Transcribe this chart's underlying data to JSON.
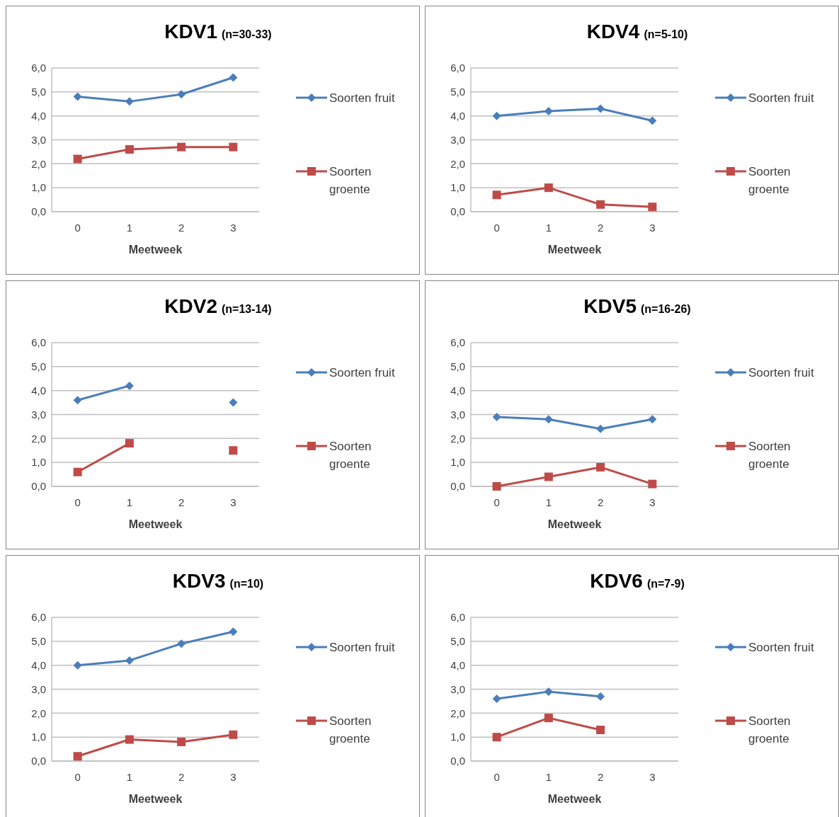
{
  "chart_data": [
    {
      "type": "line",
      "title": "KDV1",
      "subtitle": "(n=30-33)",
      "xlabel": "Meetweek",
      "categories": [
        "0",
        "1",
        "2",
        "3"
      ],
      "ylim": [
        0,
        6
      ],
      "yticks": [
        {
          "value": 0,
          "label": "0,0"
        },
        {
          "value": 1,
          "label": "1,0"
        },
        {
          "value": 2,
          "label": "2,0"
        },
        {
          "value": 3,
          "label": "3,0"
        },
        {
          "value": 4,
          "label": "4,0"
        },
        {
          "value": 5,
          "label": "5,0"
        },
        {
          "value": 6,
          "label": "6,0"
        }
      ],
      "grid": "y",
      "legend": "right",
      "series": [
        {
          "name": "Soorten fruit",
          "color": "#4a7ebb",
          "marker": "diamond",
          "values": [
            4.8,
            4.6,
            4.9,
            5.6
          ]
        },
        {
          "name": "Soorten groente",
          "color": "#be4b48",
          "marker": "square",
          "values": [
            2.2,
            2.6,
            2.7,
            2.7
          ]
        }
      ]
    },
    {
      "type": "line",
      "title": "KDV4",
      "subtitle": "(n=5-10)",
      "xlabel": "Meetweek",
      "categories": [
        "0",
        "1",
        "2",
        "3"
      ],
      "ylim": [
        0,
        6
      ],
      "yticks": [
        {
          "value": 0,
          "label": "0,0"
        },
        {
          "value": 1,
          "label": "1,0"
        },
        {
          "value": 2,
          "label": "2,0"
        },
        {
          "value": 3,
          "label": "3,0"
        },
        {
          "value": 4,
          "label": "4,0"
        },
        {
          "value": 5,
          "label": "5,0"
        },
        {
          "value": 6,
          "label": "6,0"
        }
      ],
      "grid": "y",
      "legend": "right",
      "series": [
        {
          "name": "Soorten fruit",
          "color": "#4a7ebb",
          "marker": "diamond",
          "values": [
            4.0,
            4.2,
            4.3,
            3.8
          ]
        },
        {
          "name": "Soorten groente",
          "color": "#be4b48",
          "marker": "square",
          "values": [
            0.7,
            1.0,
            0.3,
            0.2
          ]
        }
      ]
    },
    {
      "type": "line",
      "title": "KDV2",
      "subtitle": "(n=13-14)",
      "xlabel": "Meetweek",
      "categories": [
        "0",
        "1",
        "2",
        "3"
      ],
      "ylim": [
        0,
        6
      ],
      "yticks": [
        {
          "value": 0,
          "label": "0,0"
        },
        {
          "value": 1,
          "label": "1,0"
        },
        {
          "value": 2,
          "label": "2,0"
        },
        {
          "value": 3,
          "label": "3,0"
        },
        {
          "value": 4,
          "label": "4,0"
        },
        {
          "value": 5,
          "label": "5,0"
        },
        {
          "value": 6,
          "label": "6,0"
        }
      ],
      "grid": "y",
      "legend": "right",
      "series": [
        {
          "name": "Soorten fruit",
          "color": "#4a7ebb",
          "marker": "diamond",
          "values": [
            3.6,
            4.2,
            null,
            3.5
          ]
        },
        {
          "name": "Soorten groente",
          "color": "#be4b48",
          "marker": "square",
          "values": [
            0.6,
            1.8,
            null,
            1.5
          ]
        }
      ]
    },
    {
      "type": "line",
      "title": "KDV5",
      "subtitle": "(n=16-26)",
      "xlabel": "Meetweek",
      "categories": [
        "0",
        "1",
        "2",
        "3"
      ],
      "ylim": [
        0,
        6
      ],
      "yticks": [
        {
          "value": 0,
          "label": "0,0"
        },
        {
          "value": 1,
          "label": "1,0"
        },
        {
          "value": 2,
          "label": "2,0"
        },
        {
          "value": 3,
          "label": "3,0"
        },
        {
          "value": 4,
          "label": "4,0"
        },
        {
          "value": 5,
          "label": "5,0"
        },
        {
          "value": 6,
          "label": "6,0"
        }
      ],
      "grid": "y",
      "legend": "right",
      "series": [
        {
          "name": "Soorten fruit",
          "color": "#4a7ebb",
          "marker": "diamond",
          "values": [
            2.9,
            2.8,
            2.4,
            2.8
          ]
        },
        {
          "name": "Soorten groente",
          "color": "#be4b48",
          "marker": "square",
          "values": [
            0.0,
            0.4,
            0.8,
            0.1
          ]
        }
      ]
    },
    {
      "type": "line",
      "title": "KDV3",
      "subtitle": "(n=10)",
      "xlabel": "Meetweek",
      "categories": [
        "0",
        "1",
        "2",
        "3"
      ],
      "ylim": [
        0,
        6
      ],
      "yticks": [
        {
          "value": 0,
          "label": "0,0"
        },
        {
          "value": 1,
          "label": "1,0"
        },
        {
          "value": 2,
          "label": "2,0"
        },
        {
          "value": 3,
          "label": "3,0"
        },
        {
          "value": 4,
          "label": "4,0"
        },
        {
          "value": 5,
          "label": "5,0"
        },
        {
          "value": 6,
          "label": "6,0"
        }
      ],
      "grid": "y",
      "legend": "right",
      "series": [
        {
          "name": "Soorten fruit",
          "color": "#4a7ebb",
          "marker": "diamond",
          "values": [
            4.0,
            4.2,
            4.9,
            5.4
          ]
        },
        {
          "name": "Soorten groente",
          "color": "#be4b48",
          "marker": "square",
          "values": [
            0.2,
            0.9,
            0.8,
            1.1
          ]
        }
      ]
    },
    {
      "type": "line",
      "title": "KDV6",
      "subtitle": "(n=7-9)",
      "xlabel": "Meetweek",
      "categories": [
        "0",
        "1",
        "2",
        "3"
      ],
      "ylim": [
        0,
        6
      ],
      "yticks": [
        {
          "value": 0,
          "label": "0,0"
        },
        {
          "value": 1,
          "label": "1,0"
        },
        {
          "value": 2,
          "label": "2,0"
        },
        {
          "value": 3,
          "label": "3,0"
        },
        {
          "value": 4,
          "label": "4,0"
        },
        {
          "value": 5,
          "label": "5,0"
        },
        {
          "value": 6,
          "label": "6,0"
        }
      ],
      "grid": "y",
      "legend": "right",
      "series": [
        {
          "name": "Soorten fruit",
          "color": "#4a7ebb",
          "marker": "diamond",
          "values": [
            2.6,
            2.9,
            2.7,
            null
          ]
        },
        {
          "name": "Soorten groente",
          "color": "#be4b48",
          "marker": "square",
          "values": [
            1.0,
            1.8,
            1.3,
            null
          ]
        }
      ]
    }
  ]
}
